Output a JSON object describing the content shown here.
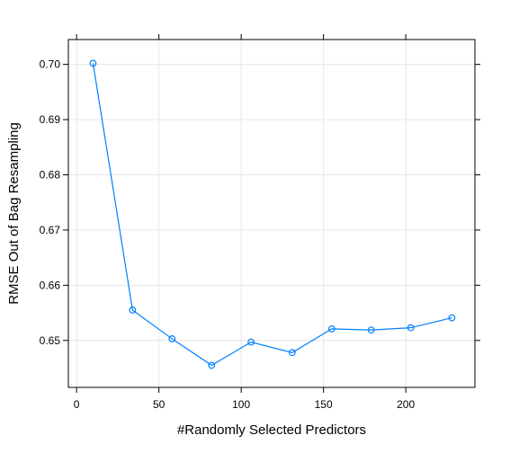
{
  "chart_data": {
    "type": "line",
    "title": "",
    "xlabel": "#Randomly Selected Predictors",
    "ylabel": "RMSE Out of Bag Resampling",
    "xlim": [
      -5,
      242
    ],
    "ylim": [
      0.6415,
      0.7045
    ],
    "x_ticks": [
      0,
      50,
      100,
      150,
      200
    ],
    "x_tick_labels": [
      "0",
      "50",
      "100",
      "150",
      "200"
    ],
    "y_ticks": [
      0.65,
      0.66,
      0.67,
      0.68,
      0.69,
      0.7
    ],
    "y_tick_labels": [
      "0.65",
      "0.66",
      "0.67",
      "0.68",
      "0.69",
      "0.70"
    ],
    "grid": true,
    "series": [
      {
        "color": "#0080ff",
        "marker": "open-circle",
        "x": [
          10,
          34,
          58,
          82,
          106,
          131,
          155,
          179,
          203,
          228
        ],
        "y": [
          0.7002,
          0.6555,
          0.6503,
          0.6455,
          0.6497,
          0.6478,
          0.6521,
          0.6519,
          0.6523,
          0.6541
        ]
      }
    ]
  }
}
